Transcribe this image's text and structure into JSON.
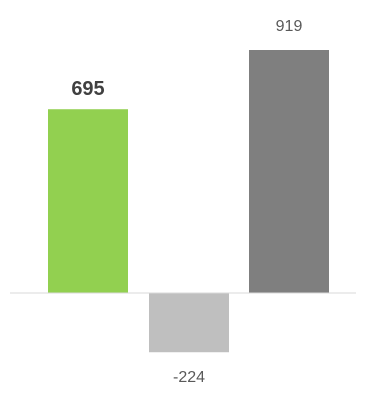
{
  "chart_data": {
    "type": "bar",
    "title": "",
    "xlabel": "",
    "ylabel": "",
    "categories": [
      "",
      "",
      ""
    ],
    "values": [
      695,
      -224,
      919
    ],
    "data_labels": [
      "695",
      "-224",
      "919"
    ],
    "ylim": [
      -224,
      919
    ],
    "grid": false,
    "legend": "none",
    "colors": [
      "#92d050",
      "#bfbfbf",
      "#7f7f7f"
    ],
    "baseline_color": "#d9d9d9",
    "label_bold": [
      true,
      false,
      false
    ]
  }
}
